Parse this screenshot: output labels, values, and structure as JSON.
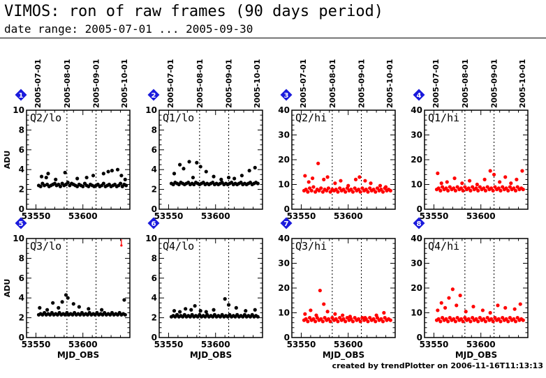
{
  "header": {
    "title": "VIMOS: ron of raw frames (90 days period)",
    "subtitle": "date range: 2005-07-01 ... 2005-09-30"
  },
  "footer": {
    "credit": "created by trendPlotter on 2006-11-16T11:13:13"
  },
  "colors": {
    "lo_series": "#000000",
    "hi_series": "#ff0000",
    "badge_fill": "#1a1adc",
    "badge_text": "#ffffff"
  },
  "icons": {
    "badge": "diamond-number-icon"
  },
  "chart_data": [
    {
      "type": "scatter",
      "badge": "1",
      "panel_label": "Q2/lo",
      "ylabel": "ADU",
      "xlabel": "",
      "xlim": [
        53540,
        53650
      ],
      "ylim": [
        0,
        10
      ],
      "y_ticks": [
        "0",
        "2",
        "4",
        "6",
        "8",
        "10"
      ],
      "x_ticks": [
        "53550",
        "53600"
      ],
      "date_ticks": [
        "2005-07-01",
        "2005-08-01",
        "2005-09-01",
        "2005-10-01"
      ],
      "color": "black",
      "x": [
        53553,
        53555,
        53557,
        53559,
        53561,
        53562,
        53564,
        53566,
        53568,
        53570,
        53572,
        53574,
        53576,
        53578,
        53580,
        53582,
        53584,
        53586,
        53588,
        53590,
        53592,
        53594,
        53596,
        53598,
        53600,
        53602,
        53604,
        53606,
        53608,
        53610,
        53612,
        53614,
        53616,
        53618,
        53620,
        53622,
        53624,
        53626,
        53628,
        53630,
        53632,
        53634,
        53636,
        53638,
        53640,
        53642,
        53644,
        53646,
        53556,
        53563,
        53571,
        53581,
        53594,
        53604,
        53611,
        53622,
        53627,
        53631,
        53637,
        53641,
        53645
      ],
      "y": [
        2.4,
        2.3,
        2.6,
        2.4,
        3.2,
        2.5,
        2.3,
        2.4,
        2.5,
        2.6,
        2.4,
        2.5,
        2.3,
        2.6,
        2.4,
        2.5,
        2.7,
        2.4,
        2.6,
        2.5,
        2.4,
        2.3,
        2.5,
        2.4,
        2.3,
        2.6,
        2.4,
        2.3,
        2.5,
        2.4,
        2.3,
        2.4,
        2.5,
        2.3,
        2.4,
        2.6,
        2.3,
        2.4,
        2.5,
        2.3,
        2.4,
        2.5,
        2.3,
        2.4,
        2.6,
        2.3,
        2.5,
        2.4,
        3.3,
        3.6,
        3.0,
        3.7,
        3.1,
        3.2,
        3.4,
        3.6,
        3.8,
        3.9,
        4.0,
        3.4,
        3.0
      ]
    },
    {
      "type": "scatter",
      "badge": "2",
      "panel_label": "Q1/lo",
      "ylabel": "",
      "xlabel": "",
      "xlim": [
        53540,
        53650
      ],
      "ylim": [
        0,
        10
      ],
      "y_ticks": [
        "0",
        "2",
        "4",
        "6",
        "8",
        "10"
      ],
      "x_ticks": [
        "53550",
        "53600"
      ],
      "date_ticks": [
        "2005-07-01",
        "2005-08-01",
        "2005-09-01",
        "2005-10-01"
      ],
      "color": "black",
      "x": [
        53553,
        53555,
        53557,
        53559,
        53561,
        53563,
        53565,
        53567,
        53569,
        53571,
        53573,
        53575,
        53577,
        53579,
        53581,
        53583,
        53585,
        53587,
        53589,
        53591,
        53593,
        53595,
        53597,
        53599,
        53601,
        53603,
        53605,
        53607,
        53609,
        53611,
        53613,
        53615,
        53617,
        53619,
        53621,
        53623,
        53625,
        53627,
        53629,
        53631,
        53633,
        53635,
        53637,
        53639,
        53641,
        53643,
        53645,
        53556,
        53562,
        53566,
        53572,
        53576,
        53580,
        53584,
        53590,
        53598,
        53606,
        53614,
        53620,
        53628,
        53636,
        53642
      ],
      "y": [
        2.6,
        2.5,
        2.7,
        2.6,
        2.5,
        2.7,
        2.6,
        2.5,
        2.6,
        2.7,
        2.5,
        2.6,
        2.5,
        2.7,
        2.6,
        2.5,
        2.6,
        2.7,
        2.5,
        2.6,
        2.5,
        2.6,
        2.7,
        2.5,
        2.6,
        2.5,
        2.6,
        2.7,
        2.5,
        2.6,
        2.5,
        2.6,
        2.7,
        2.5,
        2.6,
        2.5,
        2.6,
        2.7,
        2.5,
        2.6,
        2.5,
        2.6,
        2.7,
        2.5,
        2.6,
        2.7,
        2.6,
        3.6,
        4.5,
        4.1,
        4.8,
        3.2,
        4.7,
        4.3,
        3.8,
        3.3,
        3.0,
        3.2,
        3.1,
        3.4,
        3.9,
        4.2
      ]
    },
    {
      "type": "scatter",
      "badge": "3",
      "panel_label": "Q2/hi",
      "ylabel": "",
      "xlabel": "",
      "xlim": [
        53540,
        53650
      ],
      "ylim": [
        0,
        40
      ],
      "y_ticks": [
        "0",
        "10",
        "20",
        "30",
        "40"
      ],
      "x_ticks": [
        "53550",
        "53600"
      ],
      "date_ticks": [
        "2005-07-01",
        "2005-08-01",
        "2005-09-01",
        "2005-10-01"
      ],
      "color": "red",
      "x": [
        53553,
        53555,
        53557,
        53559,
        53561,
        53563,
        53565,
        53567,
        53569,
        53571,
        53573,
        53575,
        53577,
        53579,
        53581,
        53583,
        53585,
        53587,
        53589,
        53591,
        53593,
        53595,
        53597,
        53599,
        53601,
        53603,
        53605,
        53607,
        53609,
        53611,
        53613,
        53615,
        53617,
        53619,
        53621,
        53623,
        53625,
        53627,
        53629,
        53631,
        53633,
        53635,
        53637,
        53639,
        53641,
        53643,
        53645,
        53554,
        53558,
        53562,
        53568,
        53574,
        53578,
        53586,
        53592,
        53600,
        53608,
        53612,
        53618,
        53624,
        53634,
        53640
      ],
      "y": [
        7.5,
        8.0,
        7.0,
        8.5,
        7.5,
        9.0,
        7.0,
        8.0,
        7.5,
        8.5,
        7.0,
        8.0,
        7.5,
        8.5,
        7.0,
        8.0,
        7.5,
        8.0,
        7.0,
        8.5,
        7.5,
        8.0,
        7.0,
        8.5,
        7.5,
        8.0,
        7.0,
        8.5,
        7.5,
        8.0,
        7.0,
        8.5,
        7.5,
        8.0,
        7.0,
        8.5,
        7.5,
        8.0,
        7.0,
        8.5,
        7.5,
        8.0,
        7.0,
        8.5,
        7.5,
        8.0,
        7.5,
        13.5,
        11.0,
        12.5,
        18.5,
        12.0,
        13.0,
        10.5,
        11.5,
        9.5,
        12.0,
        13.0,
        11.5,
        10.5,
        9.5,
        9.0
      ]
    },
    {
      "type": "scatter",
      "badge": "4",
      "panel_label": "Q1/hi",
      "ylabel": "",
      "xlabel": "",
      "xlim": [
        53540,
        53650
      ],
      "ylim": [
        0,
        40
      ],
      "y_ticks": [
        "0",
        "10",
        "20",
        "30",
        "40"
      ],
      "x_ticks": [
        "53550",
        "53600"
      ],
      "date_ticks": [
        "2005-07-01",
        "2005-08-01",
        "2005-09-01",
        "2005-10-01"
      ],
      "color": "red",
      "x": [
        53553,
        53555,
        53557,
        53559,
        53561,
        53563,
        53565,
        53567,
        53569,
        53571,
        53573,
        53575,
        53577,
        53579,
        53581,
        53583,
        53585,
        53587,
        53589,
        53591,
        53593,
        53595,
        53597,
        53599,
        53601,
        53603,
        53605,
        53607,
        53609,
        53611,
        53613,
        53615,
        53617,
        53619,
        53621,
        53623,
        53625,
        53627,
        53629,
        53631,
        53633,
        53635,
        53637,
        53639,
        53641,
        53643,
        53645,
        53554,
        53558,
        53564,
        53572,
        53580,
        53588,
        53596,
        53604,
        53610,
        53614,
        53620,
        53626,
        53632,
        53638,
        53644
      ],
      "y": [
        8.0,
        8.5,
        7.5,
        9.0,
        8.0,
        8.5,
        7.5,
        9.0,
        8.0,
        8.5,
        7.5,
        9.0,
        8.0,
        8.5,
        7.5,
        9.0,
        8.0,
        8.5,
        7.5,
        9.0,
        8.0,
        8.5,
        7.5,
        9.0,
        8.0,
        8.5,
        7.5,
        9.0,
        8.0,
        8.5,
        7.5,
        9.0,
        8.0,
        8.5,
        7.5,
        9.0,
        8.0,
        8.5,
        7.5,
        9.0,
        8.0,
        8.5,
        7.5,
        9.0,
        8.0,
        8.5,
        8.0,
        14.5,
        10.5,
        11.0,
        12.5,
        10.5,
        11.5,
        10.0,
        12.0,
        15.5,
        14.0,
        11.0,
        13.0,
        10.5,
        12.0,
        15.5
      ]
    },
    {
      "type": "scatter",
      "badge": "5",
      "panel_label": "Q3/lo",
      "ylabel": "ADU",
      "xlabel": "MJD_OBS",
      "xlim": [
        53540,
        53650
      ],
      "ylim": [
        0,
        10
      ],
      "y_ticks": [
        "0",
        "2",
        "4",
        "6",
        "8",
        "10"
      ],
      "x_ticks": [
        "53550",
        "53600"
      ],
      "date_ticks": [],
      "color": "black",
      "outlier": {
        "x": 53641,
        "y": 9.3
      },
      "x": [
        53553,
        53555,
        53557,
        53559,
        53561,
        53563,
        53565,
        53567,
        53569,
        53571,
        53573,
        53575,
        53577,
        53579,
        53581,
        53583,
        53585,
        53587,
        53589,
        53591,
        53593,
        53595,
        53597,
        53599,
        53601,
        53603,
        53605,
        53607,
        53609,
        53611,
        53613,
        53615,
        53617,
        53619,
        53621,
        53623,
        53625,
        53627,
        53629,
        53631,
        53633,
        53635,
        53637,
        53639,
        53641,
        53643,
        53645,
        53554,
        53562,
        53568,
        53574,
        53578,
        53582,
        53584,
        53590,
        53596,
        53606,
        53620,
        53644
      ],
      "y": [
        2.3,
        2.4,
        2.3,
        2.5,
        2.3,
        2.4,
        2.3,
        2.5,
        2.3,
        2.4,
        2.3,
        2.5,
        2.3,
        2.4,
        2.3,
        2.5,
        2.3,
        2.4,
        2.3,
        2.5,
        2.3,
        2.4,
        2.3,
        2.5,
        2.3,
        2.4,
        2.3,
        2.5,
        2.3,
        2.4,
        2.3,
        2.5,
        2.3,
        2.4,
        2.3,
        2.5,
        2.3,
        2.4,
        2.3,
        2.5,
        2.3,
        2.4,
        2.3,
        2.5,
        2.3,
        2.4,
        2.3,
        3.0,
        2.8,
        3.5,
        3.0,
        3.6,
        4.3,
        4.0,
        3.4,
        3.1,
        2.9,
        2.8,
        3.8
      ]
    },
    {
      "type": "scatter",
      "badge": "6",
      "panel_label": "Q4/lo",
      "ylabel": "",
      "xlabel": "MJD_OBS",
      "xlim": [
        53540,
        53650
      ],
      "ylim": [
        0,
        10
      ],
      "y_ticks": [
        "0",
        "2",
        "4",
        "6",
        "8",
        "10"
      ],
      "x_ticks": [
        "53550",
        "53600"
      ],
      "date_ticks": [],
      "color": "black",
      "x": [
        53553,
        53555,
        53557,
        53559,
        53561,
        53563,
        53565,
        53567,
        53569,
        53571,
        53573,
        53575,
        53577,
        53579,
        53581,
        53583,
        53585,
        53587,
        53589,
        53591,
        53593,
        53595,
        53597,
        53599,
        53601,
        53603,
        53605,
        53607,
        53609,
        53611,
        53613,
        53615,
        53617,
        53619,
        53621,
        53623,
        53625,
        53627,
        53629,
        53631,
        53633,
        53635,
        53637,
        53639,
        53641,
        53643,
        53645,
        53556,
        53562,
        53568,
        53574,
        53578,
        53584,
        53590,
        53598,
        53610,
        53614,
        53622,
        53632,
        53642
      ],
      "y": [
        2.1,
        2.2,
        2.1,
        2.3,
        2.1,
        2.2,
        2.1,
        2.3,
        2.1,
        2.2,
        2.1,
        2.3,
        2.1,
        2.2,
        2.1,
        2.3,
        2.1,
        2.2,
        2.1,
        2.3,
        2.1,
        2.2,
        2.1,
        2.3,
        2.1,
        2.2,
        2.1,
        2.3,
        2.1,
        2.2,
        2.1,
        2.3,
        2.1,
        2.2,
        2.1,
        2.3,
        2.1,
        2.2,
        2.1,
        2.3,
        2.1,
        2.2,
        2.1,
        2.3,
        2.1,
        2.2,
        2.1,
        2.7,
        2.6,
        2.9,
        2.8,
        3.2,
        2.7,
        2.6,
        2.8,
        3.9,
        3.3,
        3.0,
        2.7,
        2.8
      ]
    },
    {
      "type": "scatter",
      "badge": "7",
      "panel_label": "Q3/hi",
      "ylabel": "",
      "xlabel": "MJD_OBS",
      "xlim": [
        53540,
        53650
      ],
      "ylim": [
        0,
        40
      ],
      "y_ticks": [
        "0",
        "10",
        "20",
        "30",
        "40"
      ],
      "x_ticks": [
        "53550",
        "53600"
      ],
      "date_ticks": [],
      "color": "red",
      "x": [
        53553,
        53555,
        53557,
        53559,
        53561,
        53563,
        53565,
        53567,
        53569,
        53571,
        53573,
        53575,
        53577,
        53579,
        53581,
        53583,
        53585,
        53587,
        53589,
        53591,
        53593,
        53595,
        53597,
        53599,
        53601,
        53603,
        53605,
        53607,
        53609,
        53611,
        53613,
        53615,
        53617,
        53619,
        53621,
        53623,
        53625,
        53627,
        53629,
        53631,
        53633,
        53635,
        53637,
        53639,
        53641,
        53643,
        53645,
        53554,
        53560,
        53566,
        53570,
        53574,
        53578,
        53586,
        53594,
        53602,
        53618,
        53630,
        53638
      ],
      "y": [
        7.0,
        7.5,
        6.5,
        8.0,
        7.0,
        7.5,
        6.5,
        8.0,
        7.0,
        7.5,
        6.5,
        8.0,
        7.0,
        7.5,
        6.5,
        8.0,
        7.0,
        7.5,
        6.5,
        8.0,
        7.0,
        7.5,
        6.5,
        8.0,
        7.0,
        7.5,
        6.5,
        8.0,
        7.0,
        7.5,
        6.5,
        8.0,
        7.0,
        7.5,
        6.5,
        8.0,
        7.0,
        7.5,
        6.5,
        8.0,
        7.0,
        7.5,
        6.5,
        8.0,
        7.0,
        7.5,
        7.0,
        9.5,
        11.0,
        9.0,
        19.0,
        13.5,
        10.5,
        9.5,
        9.0,
        8.5,
        8.0,
        9.0,
        10.0
      ]
    },
    {
      "type": "scatter",
      "badge": "8",
      "panel_label": "Q4/hi",
      "ylabel": "",
      "xlabel": "MJD_OBS",
      "xlim": [
        53540,
        53650
      ],
      "ylim": [
        0,
        40
      ],
      "y_ticks": [
        "0",
        "10",
        "20",
        "30",
        "40"
      ],
      "x_ticks": [
        "53550",
        "53600"
      ],
      "date_ticks": [],
      "color": "red",
      "x": [
        53553,
        53555,
        53557,
        53559,
        53561,
        53563,
        53565,
        53567,
        53569,
        53571,
        53573,
        53575,
        53577,
        53579,
        53581,
        53583,
        53585,
        53587,
        53589,
        53591,
        53593,
        53595,
        53597,
        53599,
        53601,
        53603,
        53605,
        53607,
        53609,
        53611,
        53613,
        53615,
        53617,
        53619,
        53621,
        53623,
        53625,
        53627,
        53629,
        53631,
        53633,
        53635,
        53637,
        53639,
        53641,
        53643,
        53645,
        53554,
        53558,
        53562,
        53566,
        53570,
        53574,
        53578,
        53584,
        53592,
        53602,
        53610,
        53618,
        53626,
        53636,
        53642
      ],
      "y": [
        7.0,
        7.5,
        6.5,
        8.0,
        7.0,
        7.5,
        6.5,
        8.0,
        7.0,
        7.5,
        6.5,
        8.0,
        7.0,
        7.5,
        6.5,
        8.0,
        7.0,
        7.5,
        6.5,
        8.0,
        7.0,
        7.5,
        6.5,
        8.0,
        7.0,
        7.5,
        6.5,
        8.0,
        7.0,
        7.5,
        6.5,
        8.0,
        7.0,
        7.5,
        6.5,
        8.0,
        7.0,
        7.5,
        6.5,
        8.0,
        7.0,
        7.5,
        6.5,
        8.0,
        7.0,
        7.5,
        7.0,
        11.0,
        14.0,
        12.0,
        16.0,
        19.5,
        13.0,
        17.0,
        10.5,
        12.5,
        11.0,
        10.0,
        13.0,
        12.0,
        11.5,
        13.5
      ]
    }
  ]
}
